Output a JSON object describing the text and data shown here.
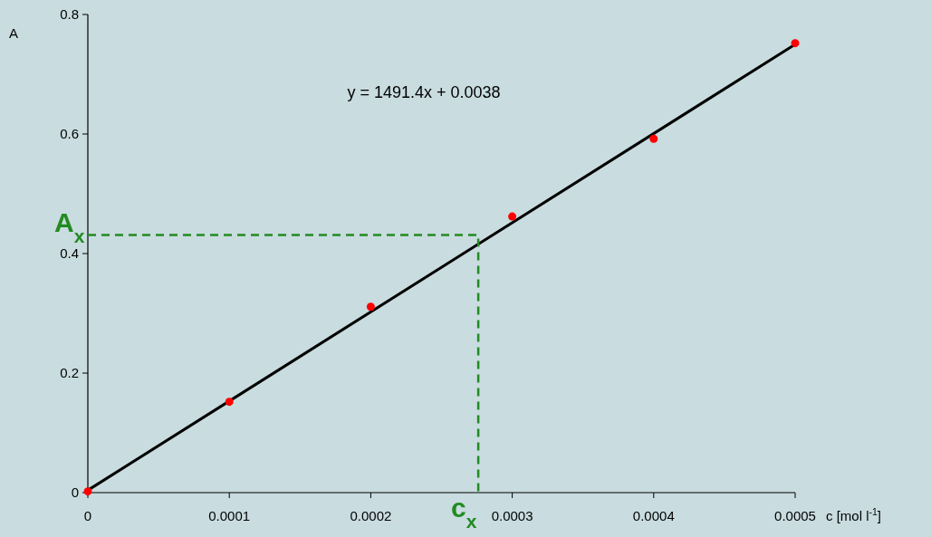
{
  "chart_data": {
    "type": "scatter",
    "xlabel": "c [mol l$^{-1}$]",
    "ylabel": "A",
    "x": [
      0,
      0.0001,
      0.0002,
      0.0003,
      0.0004,
      0.0005
    ],
    "series": [
      {
        "color": "#ff0000",
        "values": [
          0.002,
          0.152,
          0.311,
          0.462,
          0.592,
          0.752
        ],
        "marker": "circle"
      },
      {
        "type": "line",
        "color": "#000000",
        "x": [
          0,
          0.0005
        ],
        "values": [
          0.004,
          0.75
        ],
        "line_style": "solid"
      },
      {
        "type": "line",
        "color": "#228b22",
        "x": [
          0,
          0.000276,
          0.000276
        ],
        "values": [
          0.431,
          0.431,
          0
        ],
        "line_style": "dashed"
      }
    ],
    "annotations": [
      "y = 1491.4x + 0.0038",
      "A$_{x}$",
      "c$_{x}$"
    ],
    "xlim": [
      0,
      0.0005
    ],
    "xticks": [
      0,
      0.0001,
      0.0002,
      0.0003,
      0.0004,
      0.0005
    ],
    "ylim": [
      0,
      0.8
    ],
    "yticks": [
      0,
      0.2,
      0.4,
      0.6,
      0.8
    ],
    "grid": false
  }
}
